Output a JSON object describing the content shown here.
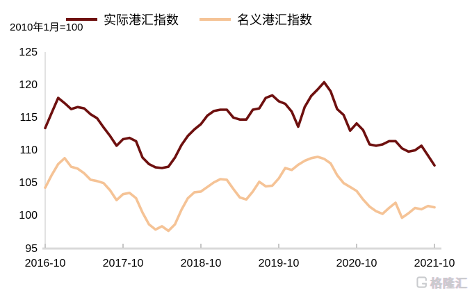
{
  "header": {
    "note": "2010年1月=100"
  },
  "watermark": {
    "text": "格隆汇",
    "logo": "gelonghui-logo"
  },
  "chart_data": {
    "type": "line",
    "title": "",
    "xlabel": "",
    "ylabel": "",
    "x_start": "2016-10",
    "x_end": "2021-10",
    "x_unit": "month",
    "points_per_series": 61,
    "xticks": [
      "2016-10",
      "2017-10",
      "2018-10",
      "2019-10",
      "2020-10",
      "2021-10"
    ],
    "yticks": [
      125,
      120,
      115,
      110,
      105,
      100,
      95
    ],
    "ylim": [
      95,
      125
    ],
    "grid": false,
    "legend_position": "top",
    "axis_color": "#d9d9d9",
    "series": [
      {
        "name": "实际港汇指数",
        "color": "#6E100F",
        "values": [
          113.4,
          115.7,
          118.0,
          117.2,
          116.3,
          116.6,
          116.4,
          115.5,
          114.9,
          113.5,
          112.2,
          110.7,
          111.7,
          111.9,
          111.4,
          108.9,
          107.9,
          107.4,
          107.3,
          107.5,
          108.9,
          110.8,
          112.2,
          113.2,
          114.0,
          115.3,
          116.0,
          116.2,
          116.2,
          115.0,
          114.7,
          114.7,
          116.2,
          116.4,
          118.0,
          118.4,
          117.5,
          117.1,
          115.9,
          113.6,
          116.6,
          118.3,
          119.3,
          120.4,
          119.0,
          116.3,
          115.4,
          113.0,
          114.1,
          113.1,
          110.9,
          110.7,
          110.9,
          111.4,
          111.4,
          110.3,
          109.8,
          110.0,
          110.7,
          109.2,
          107.7
        ]
      },
      {
        "name": "名义港汇指数",
        "color": "#F5C396",
        "values": [
          104.3,
          106.2,
          107.9,
          108.8,
          107.5,
          107.2,
          106.5,
          105.5,
          105.3,
          105.0,
          103.9,
          102.4,
          103.3,
          103.5,
          102.7,
          100.5,
          98.7,
          97.9,
          98.4,
          97.7,
          98.7,
          100.9,
          102.7,
          103.6,
          103.7,
          104.4,
          105.1,
          105.6,
          105.5,
          104.1,
          102.8,
          102.5,
          103.7,
          105.2,
          104.5,
          104.6,
          105.7,
          107.3,
          107.0,
          107.8,
          108.4,
          108.8,
          109.0,
          108.7,
          108.0,
          106.2,
          105.0,
          104.4,
          103.8,
          102.5,
          101.4,
          100.7,
          100.3,
          101.2,
          102.0,
          99.7,
          100.4,
          101.2,
          101.0,
          101.5,
          101.3
        ]
      }
    ]
  }
}
